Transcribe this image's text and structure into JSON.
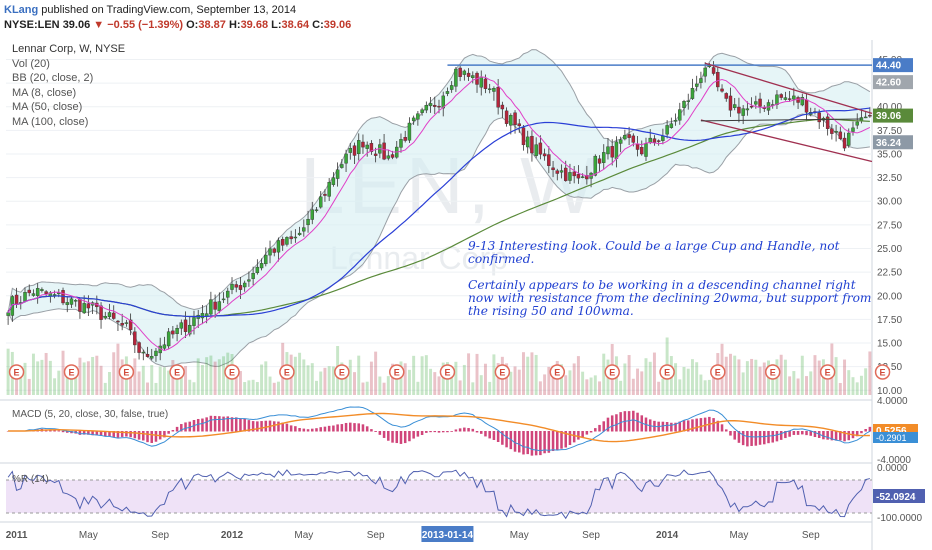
{
  "header": {
    "user": "KLang",
    "published": "published on TradingView.com, September 13, 2014",
    "symbol": "NYSE:LEN",
    "last": "39.06",
    "change": "▼ −0.55 (−1.39%)",
    "o_label": "O:",
    "o_value": "38.87",
    "h_label": "H:",
    "h_value": "39.68",
    "l_label": "L:",
    "l_value": "38.64",
    "c_label": "C:",
    "c_value": "39.06"
  },
  "legend": {
    "title": "Lennar Corp, W, NYSE",
    "items": [
      "Vol (20)",
      "BB (20, close, 2)",
      "MA (8, close)",
      "MA (50, close)",
      "MA (100, close)"
    ]
  },
  "watermark": {
    "big": "LEN, W",
    "small": "Lennar Corp"
  },
  "note": {
    "p1": "9-13  Interesting look.  Could be a large Cup and Handle, not confirmed.",
    "p2": "Certainly appears to be working in a descending channel right now with resistance from the declining 20wma, but support from the rising 50 and 100wma."
  },
  "colors": {
    "up": "#3aa53a",
    "down": "#b5243b",
    "ma8": "#e040c8",
    "ma50": "#2a3fd6",
    "ma100": "#5a8a3a",
    "bb": "#9aa0a6",
    "bbfill": "#d6eef2",
    "resist": "#4a7cc7",
    "channel": "#a03050",
    "macd": "#3a8fd6",
    "signal": "#f28c28",
    "hist": "#d0457a",
    "wr": "#5060b0",
    "wrfill": "#efe2f7"
  },
  "chart_data": [
    {
      "type": "candlestick",
      "title": "Lennar Corp, W, NYSE",
      "y_ticks": [
        10.0,
        12.5,
        15.0,
        17.5,
        20.0,
        22.5,
        25.0,
        27.5,
        30.0,
        32.5,
        35.0,
        37.5,
        40.0,
        42.5,
        45.0
      ],
      "ylim": [
        9.5,
        46.0
      ],
      "x_ticks": [
        "2011",
        "May",
        "Sep",
        "2012",
        "May",
        "Sep",
        "2013-01-14",
        "May",
        "Sep",
        "2014",
        "May",
        "Sep"
      ],
      "price_labels": [
        "44.40",
        "42.60",
        "39.06",
        "36.24"
      ],
      "earnings_marker": "E",
      "earnings_count": 17,
      "trend_lines": {
        "resistance": 44.4,
        "channel": "descending"
      },
      "close_anchors": [
        [
          0,
          19.0
        ],
        [
          6,
          20.5
        ],
        [
          12,
          19.8
        ],
        [
          20,
          18.6
        ],
        [
          28,
          16.5
        ],
        [
          32,
          13.5
        ],
        [
          36,
          14.8
        ],
        [
          44,
          17.6
        ],
        [
          50,
          19.6
        ],
        [
          56,
          21.5
        ],
        [
          62,
          24.8
        ],
        [
          68,
          26.0
        ],
        [
          72,
          28.4
        ],
        [
          78,
          33.6
        ],
        [
          84,
          36.4
        ],
        [
          90,
          34.6
        ],
        [
          96,
          38.2
        ],
        [
          102,
          40.8
        ],
        [
          106,
          43.8
        ],
        [
          110,
          43.0
        ],
        [
          114,
          42.1
        ],
        [
          118,
          39.0
        ],
        [
          124,
          35.6
        ],
        [
          130,
          33.4
        ],
        [
          135,
          32.1
        ],
        [
          140,
          34.6
        ],
        [
          146,
          36.2
        ],
        [
          150,
          35.4
        ],
        [
          156,
          37.4
        ],
        [
          162,
          41.6
        ],
        [
          165,
          44.4
        ],
        [
          170,
          40.2
        ],
        [
          176,
          39.6
        ],
        [
          182,
          41.0
        ],
        [
          188,
          40.6
        ],
        [
          194,
          38.0
        ],
        [
          198,
          36.3
        ],
        [
          202,
          38.2
        ],
        [
          204,
          39.06
        ]
      ]
    },
    {
      "type": "line",
      "title": "MACD (5, 20, close, 30, false, true)",
      "y_ticks": [
        "4.0000",
        "-4.0000"
      ],
      "last_labels": [
        "0.5256",
        "-0.2901"
      ]
    },
    {
      "type": "line",
      "title": "%R (14)",
      "y_ticks": [
        "0.0000",
        "-100.0000"
      ],
      "last_label": "-52.0924"
    }
  ]
}
